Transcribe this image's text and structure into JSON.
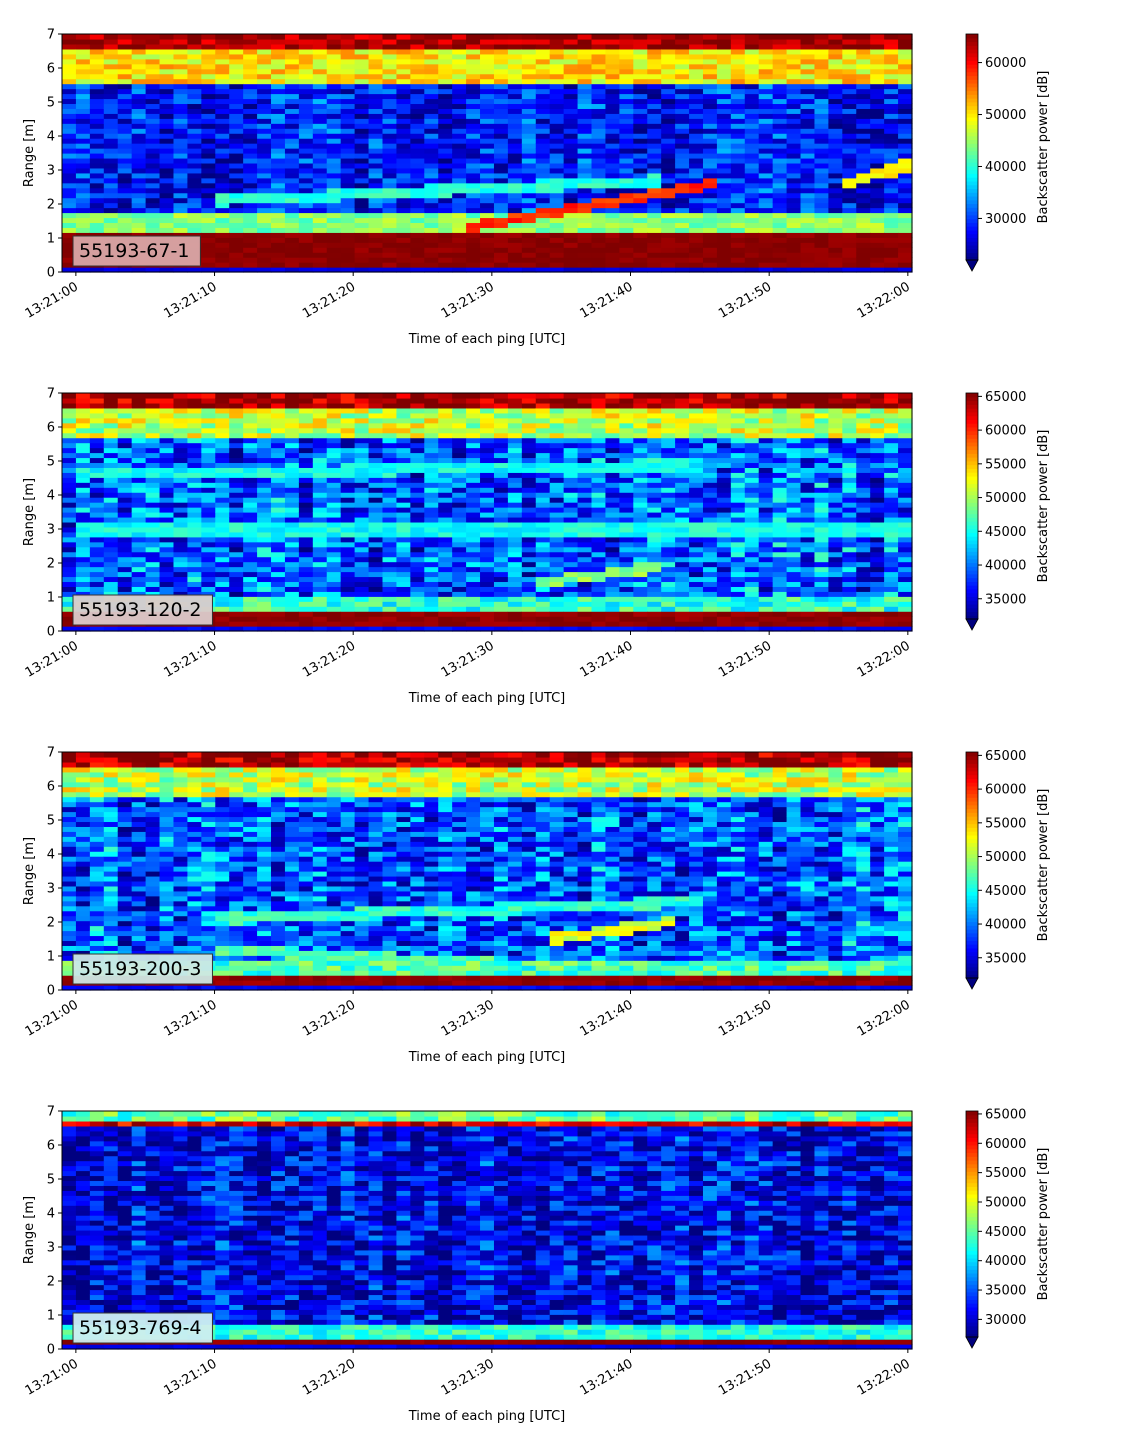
{
  "figure": {
    "colormap": "jet",
    "under_color": "#00007f",
    "over_color": "#7f0000"
  },
  "chart_data": [
    {
      "type": "heatmap",
      "panel_label": "55193-67-1",
      "label_box_color": "#d9a8a8",
      "xlabel": "Time of each ping [UTC]",
      "ylabel": "Range [m]",
      "colorbar_label": "Backscatter power [dB]",
      "x_ticks": [
        "13:21:00",
        "13:21:10",
        "13:21:20",
        "13:21:30",
        "13:21:40",
        "13:21:50",
        "13:22:00"
      ],
      "x_range_seconds": [
        -1,
        60.3
      ],
      "y_ticks": [
        0,
        1,
        2,
        3,
        4,
        5,
        6,
        7
      ],
      "ylim": [
        0,
        7
      ],
      "colorbar_ticks": [
        30000,
        40000,
        50000,
        60000
      ],
      "color_range": [
        22000,
        65500
      ],
      "features": {
        "bottom_band": {
          "from": 0.2,
          "to": 1.15,
          "level": 65000
        },
        "surface_band": {
          "from": 6.55,
          "to": 7.0,
          "level": 64000
        },
        "lower_wash": {
          "from": 1.15,
          "to": 1.8,
          "level": 44000
        },
        "upper_wash": {
          "from": 5.6,
          "to": 6.55,
          "level": 50000
        },
        "background": 28000,
        "tracks": [
          {
            "t0": 28,
            "r0": 1.3,
            "t1": 46,
            "r1": 2.6,
            "level": 58000
          },
          {
            "t0": 10,
            "r0": 2.1,
            "t1": 42,
            "r1": 2.7,
            "level": 40000
          },
          {
            "t0": 55,
            "r0": 2.5,
            "t1": 60.3,
            "r1": 3.2,
            "level": 50000
          }
        ]
      }
    },
    {
      "type": "heatmap",
      "panel_label": "55193-120-2",
      "label_box_color": "#dbcbcb",
      "xlabel": "Time of each ping [UTC]",
      "ylabel": "Range [m]",
      "colorbar_label": "Backscatter power [dB]",
      "x_ticks": [
        "13:21:00",
        "13:21:10",
        "13:21:20",
        "13:21:30",
        "13:21:40",
        "13:21:50",
        "13:22:00"
      ],
      "x_range_seconds": [
        -1,
        60.3
      ],
      "y_ticks": [
        0,
        1,
        2,
        3,
        4,
        5,
        6,
        7
      ],
      "ylim": [
        0,
        7
      ],
      "colorbar_ticks": [
        35000,
        40000,
        45000,
        50000,
        55000,
        60000,
        65000
      ],
      "color_range": [
        32000,
        65500
      ],
      "features": {
        "bottom_band": {
          "from": 0.1,
          "to": 0.55,
          "level": 65000
        },
        "surface_band": {
          "from": 6.6,
          "to": 7.0,
          "level": 64000
        },
        "lower_wash": {
          "from": 0.55,
          "to": 1.0,
          "level": 46000
        },
        "upper_wash": {
          "from": 5.7,
          "to": 6.6,
          "level": 51000
        },
        "background": 39000,
        "tracks": [
          {
            "t0": 33,
            "r0": 1.4,
            "t1": 42,
            "r1": 1.9,
            "level": 49000
          },
          {
            "t0": 0,
            "r0": 4.6,
            "t1": 45,
            "r1": 4.9,
            "level": 45000
          },
          {
            "t0": 0,
            "r0": 3.0,
            "t1": 60,
            "r1": 3.0,
            "level": 45000
          }
        ]
      }
    },
    {
      "type": "heatmap",
      "panel_label": "55193-200-3",
      "label_box_color": "#cde8e4",
      "xlabel": "Time of each ping [UTC]",
      "ylabel": "Range [m]",
      "colorbar_label": "Backscatter power [dB]",
      "x_ticks": [
        "13:21:00",
        "13:21:10",
        "13:21:20",
        "13:21:30",
        "13:21:40",
        "13:21:50",
        "13:22:00"
      ],
      "x_range_seconds": [
        -1,
        60.3
      ],
      "y_ticks": [
        0,
        1,
        2,
        3,
        4,
        5,
        6,
        7
      ],
      "ylim": [
        0,
        7
      ],
      "colorbar_ticks": [
        35000,
        40000,
        45000,
        50000,
        55000,
        60000,
        65000
      ],
      "color_range": [
        32000,
        65500
      ],
      "features": {
        "bottom_band": {
          "from": 0.2,
          "to": 0.5,
          "level": 65000
        },
        "surface_band": {
          "from": 6.6,
          "to": 7.0,
          "level": 64000
        },
        "lower_wash": {
          "from": 0.5,
          "to": 0.9,
          "level": 47000
        },
        "upper_wash": {
          "from": 5.7,
          "to": 6.6,
          "level": 51000
        },
        "background": 39000,
        "tracks": [
          {
            "t0": 34,
            "r0": 1.5,
            "t1": 43,
            "r1": 2.0,
            "level": 52000
          },
          {
            "t0": 10,
            "r0": 2.1,
            "t1": 45,
            "r1": 2.6,
            "level": 46000
          },
          {
            "t0": 10,
            "r0": 1.2,
            "t1": 30,
            "r1": 0.8,
            "level": 47000
          }
        ]
      }
    },
    {
      "type": "heatmap",
      "panel_label": "55193-769-4",
      "label_box_color": "#cdeef0",
      "xlabel": "Time of each ping [UTC]",
      "ylabel": "Range [m]",
      "colorbar_label": "Backscatter power [dB]",
      "x_ticks": [
        "13:21:00",
        "13:21:10",
        "13:21:20",
        "13:21:30",
        "13:21:40",
        "13:21:50",
        "13:22:00"
      ],
      "x_range_seconds": [
        -1,
        60.3
      ],
      "y_ticks": [
        0,
        1,
        2,
        3,
        4,
        5,
        6,
        7
      ],
      "ylim": [
        0,
        7
      ],
      "colorbar_ticks": [
        30000,
        35000,
        40000,
        45000,
        50000,
        55000,
        60000,
        65000
      ],
      "color_range": [
        27000,
        65500
      ],
      "features": {
        "bottom_band": {
          "from": 0.2,
          "to": 0.35,
          "level": 65000
        },
        "surface_band": {
          "from": 6.55,
          "to": 6.75,
          "level": 62000
        },
        "lower_wash": {
          "from": 0.35,
          "to": 0.8,
          "level": 43000
        },
        "upper_wash": {
          "from": 6.75,
          "to": 7.0,
          "level": 45000
        },
        "background": 31000,
        "tracks": []
      }
    }
  ]
}
